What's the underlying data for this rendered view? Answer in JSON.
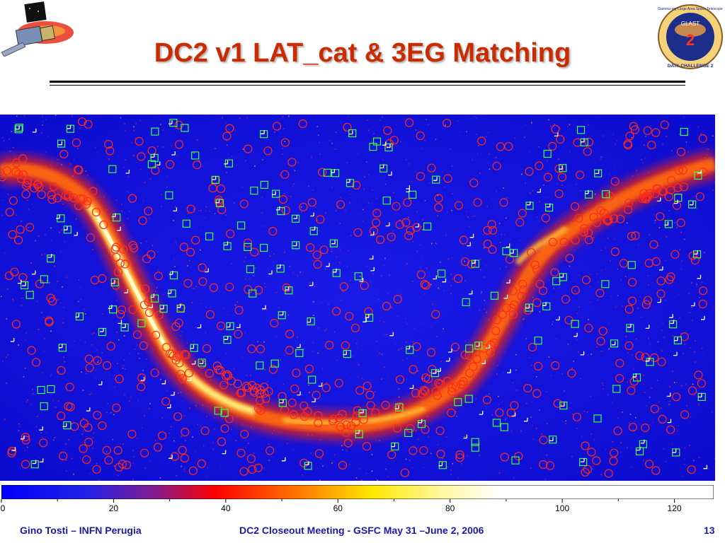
{
  "title": "DC2 v1 LAT_cat  & 3EG Matching",
  "logo_right": {
    "top_text": "Gamma-ray Large Area Space Telescope",
    "name": "GLAST",
    "bottom_text": "DATA CHALLENGE 2",
    "number": "2"
  },
  "colorbar": {
    "ticks": [
      "0",
      "20",
      "40",
      "60",
      "80",
      "100",
      "120"
    ],
    "min": 0,
    "max": 127
  },
  "footer": {
    "left": "Gino Tosti – INFN Perugia",
    "center": "DC2 Closeout Meeting  - GSFC  May 31 –June 2, 2006",
    "right": "13"
  },
  "colors": {
    "title": "#cc2a00",
    "footer": "#1a1aa6",
    "map_bg": "#1010e0",
    "circle": "#ff2a1a",
    "square": "#3cff3c",
    "cross": "#ffffff"
  }
}
